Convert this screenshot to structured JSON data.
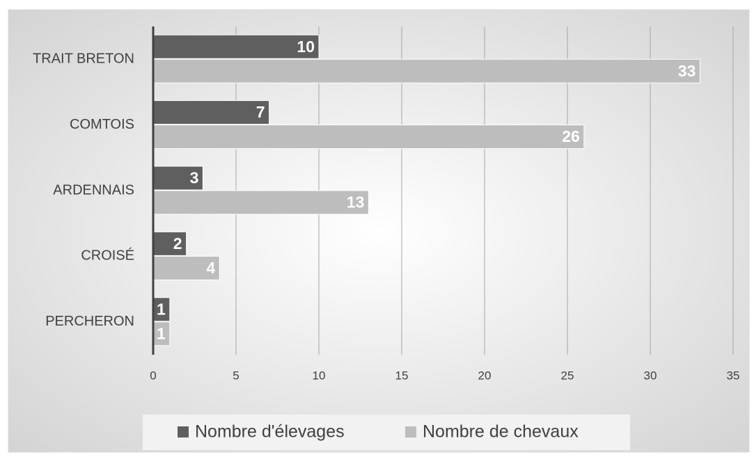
{
  "chart_data": {
    "type": "bar",
    "orientation": "horizontal",
    "categories": [
      "TRAIT BRETON",
      "COMTOIS",
      "ARDENNAIS",
      "CROISÉ",
      "PERCHERON"
    ],
    "series": [
      {
        "name": "Nombre d'élevages",
        "color": "#5f5f5f",
        "values": [
          10,
          7,
          3,
          2,
          1
        ]
      },
      {
        "name": "Nombre de chevaux",
        "color": "#bdbdbd",
        "values": [
          33,
          26,
          13,
          4,
          1
        ]
      }
    ],
    "xlim": [
      0,
      35
    ],
    "xticks": [
      0,
      5,
      10,
      15,
      20,
      25,
      30,
      35
    ],
    "grid": true,
    "legend": "bottom"
  }
}
